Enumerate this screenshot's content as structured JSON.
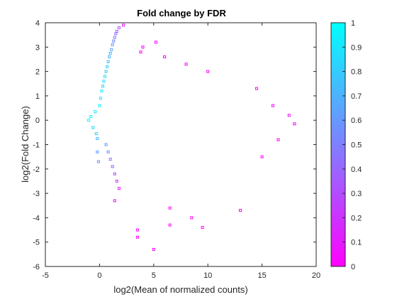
{
  "chart_data": {
    "type": "scatter",
    "title": "Fold change by FDR",
    "xlabel": "log2(Mean of normalized counts)",
    "ylabel": "log2(Fold Change)",
    "xlim": [
      -5,
      20
    ],
    "ylim": [
      -6,
      4
    ],
    "xticks": [
      "-5",
      "0",
      "5",
      "10",
      "15",
      "20"
    ],
    "yticks": [
      "-6",
      "-5",
      "-4",
      "-3",
      "-2",
      "-1",
      "0",
      "1",
      "2",
      "3",
      "4"
    ],
    "grid": false,
    "marker": "square",
    "colorbar": {
      "label_values": [
        "0",
        "0.1",
        "0.2",
        "0.3",
        "0.4",
        "0.5",
        "0.6",
        "0.7",
        "0.8",
        "0.9",
        "1"
      ],
      "range": [
        0,
        1
      ],
      "color_low": "#ff00ff",
      "color_high": "#00ffff",
      "placement": "right"
    },
    "color_variable": "FDR",
    "points": [
      [
        -1.0,
        0.0,
        1.0
      ],
      [
        -0.8,
        0.15,
        0.95
      ],
      [
        -0.6,
        -0.3,
        0.9
      ],
      [
        -0.4,
        0.35,
        0.9
      ],
      [
        -0.3,
        -0.55,
        0.85
      ],
      [
        -0.2,
        -0.75,
        0.7
      ],
      [
        -0.2,
        -1.3,
        0.6
      ],
      [
        -0.1,
        -1.7,
        0.55
      ],
      [
        0.0,
        0.6,
        0.95
      ],
      [
        0.1,
        0.9,
        0.9
      ],
      [
        0.2,
        1.2,
        0.9
      ],
      [
        0.3,
        1.4,
        0.85
      ],
      [
        0.4,
        1.6,
        0.85
      ],
      [
        0.5,
        1.8,
        0.85
      ],
      [
        0.6,
        2.0,
        0.8
      ],
      [
        0.7,
        2.2,
        0.8
      ],
      [
        0.8,
        2.4,
        0.75
      ],
      [
        0.9,
        2.6,
        0.7
      ],
      [
        1.0,
        2.75,
        0.7
      ],
      [
        1.1,
        2.9,
        0.65
      ],
      [
        1.2,
        3.1,
        0.6
      ],
      [
        1.3,
        3.25,
        0.55
      ],
      [
        1.4,
        3.4,
        0.5
      ],
      [
        1.5,
        3.55,
        0.45
      ],
      [
        1.6,
        3.65,
        0.4
      ],
      [
        1.8,
        3.8,
        0.3
      ],
      [
        2.2,
        3.9,
        0.1
      ],
      [
        0.6,
        -1.0,
        0.6
      ],
      [
        0.8,
        -1.3,
        0.55
      ],
      [
        1.0,
        -1.6,
        0.45
      ],
      [
        1.2,
        -1.9,
        0.4
      ],
      [
        1.4,
        -2.2,
        0.3
      ],
      [
        1.6,
        -2.5,
        0.2
      ],
      [
        1.8,
        -2.8,
        0.1
      ],
      [
        1.4,
        -3.3,
        0.05
      ],
      [
        3.5,
        -4.5,
        0.02
      ],
      [
        5.0,
        -5.3,
        0.0
      ],
      [
        6.5,
        -4.3,
        0.0
      ],
      [
        8.5,
        -4.0,
        0.0
      ],
      [
        9.5,
        -4.4,
        0.0
      ],
      [
        6.5,
        -3.6,
        0.0
      ],
      [
        3.5,
        -4.8,
        0.0
      ],
      [
        13.0,
        -3.7,
        0.0
      ],
      [
        15.0,
        -1.5,
        0.0
      ],
      [
        16.5,
        -0.8,
        0.0
      ],
      [
        18.0,
        -0.15,
        0.0
      ],
      [
        17.5,
        0.2,
        0.05
      ],
      [
        16.0,
        0.6,
        0.0
      ],
      [
        14.5,
        1.3,
        0.0
      ],
      [
        5.2,
        3.2,
        0.0
      ],
      [
        4.0,
        3.0,
        0.0
      ],
      [
        3.8,
        2.8,
        0.0
      ],
      [
        6.0,
        2.6,
        0.0
      ],
      [
        8.0,
        2.3,
        0.0
      ],
      [
        10.0,
        2.0,
        0.0
      ]
    ]
  }
}
